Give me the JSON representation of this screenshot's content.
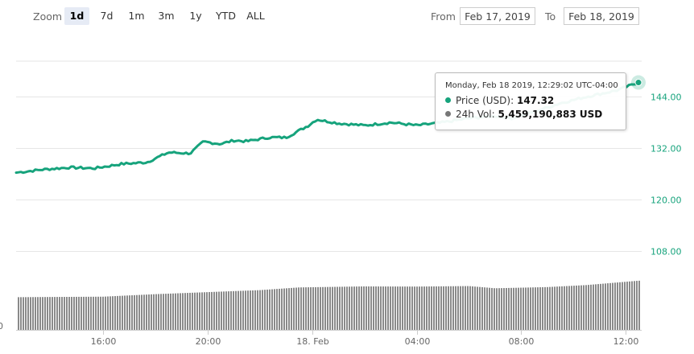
{
  "zoom": {
    "label": "Zoom",
    "buttons": [
      {
        "label": "1d",
        "active": true
      },
      {
        "label": "7d",
        "active": false
      },
      {
        "label": "1m",
        "active": false
      },
      {
        "label": "3m",
        "active": false
      },
      {
        "label": "1y",
        "active": false
      },
      {
        "label": "YTD",
        "active": false
      },
      {
        "label": "ALL",
        "active": false
      }
    ]
  },
  "range": {
    "from_label": "From",
    "from_value": "Feb 17, 2019",
    "to_label": "To",
    "to_value": "Feb 18, 2019"
  },
  "tooltip": {
    "header": "Monday, Feb 18 2019, 12:29:02 UTC-04:00",
    "price_label": "Price (USD):",
    "price_value": "147.32",
    "volume_label": "24h Vol:",
    "volume_value": "5,459,190,883 USD"
  },
  "colors": {
    "price_line": "#16a37c",
    "volume_bars": "#8a8a8a",
    "volume_dot": "#777777",
    "grid": "#e6e6e6",
    "axis_label": "#16a37c"
  },
  "chart_data": {
    "type": "line",
    "title": "",
    "xlabel": "",
    "ylabel": "",
    "x_ticks": [
      "16:00",
      "20:00",
      "18. Feb",
      "04:00",
      "08:00",
      "12:00"
    ],
    "y_ticks": [
      "108.00",
      "120.00",
      "132.00",
      "144.00"
    ],
    "ylim": [
      102.2,
      152.3
    ],
    "volume_axis_tick": "0",
    "series": [
      {
        "name": "Price (USD)",
        "x": [
          "Feb 17 12:40",
          "Feb 17 13:40",
          "Feb 17 14:40",
          "Feb 17 15:40",
          "Feb 17 16:40",
          "Feb 17 17:40",
          "Feb 17 18:30",
          "Feb 17 19:20",
          "Feb 17 19:50",
          "Feb 17 20:30",
          "Feb 17 21:00",
          "Feb 17 21:30",
          "Feb 17 22:20",
          "Feb 17 23:00",
          "Feb 17 23:50",
          "Feb 18 00:10",
          "Feb 18 01:00",
          "Feb 18 02:00",
          "Feb 18 03:00",
          "Feb 18 04:00",
          "Feb 18 05:00",
          "Feb 18 06:00",
          "Feb 18 07:00",
          "Feb 18 07:40",
          "Feb 18 08:30",
          "Feb 18 09:30",
          "Feb 18 10:30",
          "Feb 18 11:40",
          "Feb 18 12:29"
        ],
        "y": [
          126.3,
          127.0,
          127.5,
          127.3,
          128.3,
          128.7,
          131.0,
          130.8,
          133.5,
          133.0,
          133.8,
          133.6,
          134.5,
          134.5,
          137.2,
          138.7,
          137.8,
          137.3,
          138.0,
          137.3,
          138.0,
          139.0,
          139.5,
          139.0,
          140.5,
          142.5,
          144.0,
          145.5,
          147.32
        ]
      },
      {
        "name": "24h Vol",
        "x": [
          "Feb 17 12:40",
          "Feb 17 16:00",
          "Feb 17 18:00",
          "Feb 17 20:00",
          "Feb 17 22:00",
          "Feb 17 23:30",
          "Feb 18 02:00",
          "Feb 18 04:00",
          "Feb 18 06:00",
          "Feb 18 07:00",
          "Feb 18 09:00",
          "Feb 18 10:30",
          "Feb 18 12:29"
        ],
        "y": [
          4970000000,
          4985000000,
          5060000000,
          5120000000,
          5180000000,
          5260000000,
          5290000000,
          5285000000,
          5300000000,
          5235000000,
          5270000000,
          5330000000,
          5459190883
        ]
      }
    ]
  }
}
